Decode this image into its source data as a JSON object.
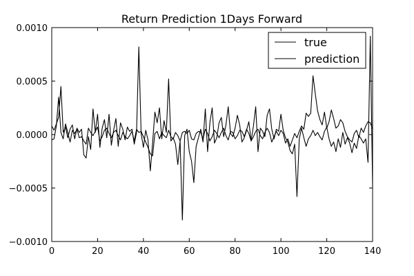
{
  "chart_data": {
    "type": "line",
    "title": "Return Prediction 1Days Forward",
    "xlabel": "",
    "ylabel": "",
    "xlim": [
      0,
      140
    ],
    "ylim": [
      -0.001,
      0.001
    ],
    "x_ticks": [
      0,
      20,
      40,
      60,
      80,
      100,
      120,
      140
    ],
    "x_tick_labels": [
      "0",
      "20",
      "40",
      "60",
      "80",
      "100",
      "120",
      "140"
    ],
    "y_ticks": [
      -0.001,
      -0.0005,
      0.0,
      0.0005,
      0.001
    ],
    "y_tick_labels": [
      "−0.0010",
      "−0.0005",
      "0.0000",
      "0.0005",
      "0.0010"
    ],
    "grid": false,
    "legend_position": "top-right",
    "colors": {
      "line": "#000000",
      "axes": "#000000",
      "background": "#ffffff"
    },
    "series": [
      {
        "name": "true",
        "values": [
          8e-05,
          4e-05,
          0.0001,
          0.00016,
          0.00045,
          2e-05,
          7e-05,
          -3e-05,
          5e-05,
          9e-05,
          -4e-05,
          6e-05,
          2e-05,
          5e-05,
          -0.00019,
          -0.00022,
          -2e-05,
          -0.00014,
          0.00024,
          2e-05,
          0.00019,
          -0.00012,
          6e-05,
          0.00014,
          -3e-05,
          0.00019,
          -0.0001,
          4e-05,
          0.00015,
          -0.00011,
          0.00011,
          5e-05,
          -5e-05,
          7e-05,
          3e-05,
          5e-05,
          -9e-05,
          2e-05,
          0.00082,
          1e-05,
          -0.00012,
          4e-05,
          -5e-05,
          -0.00034,
          -8e-05,
          0.00021,
          0.00011,
          0.00025,
          -4e-05,
          0.00013,
          2e-05,
          0.00052,
          -6e-05,
          -3e-05,
          -9e-05,
          -0.00028,
          -6e-05,
          -0.0008,
          -1e-05,
          5e-05,
          -0.00016,
          -0.00025,
          -0.00045,
          -0.00011,
          -3e-05,
          5e-05,
          -7e-05,
          0.00024,
          -0.00016,
          0.00011,
          0.00025,
          -8e-05,
          -3e-05,
          0.00011,
          0.00016,
          -2e-05,
          9e-05,
          0.00026,
          1e-05,
          -2e-05,
          6e-05,
          0.00018,
          9e-05,
          -7e-05,
          -3e-05,
          4e-05,
          0.00012,
          -6e-05,
          8e-05,
          0.00026,
          -0.00016,
          6e-05,
          3e-05,
          -2e-05,
          0.00018,
          0.00024,
          5e-05,
          -4e-05,
          5e-05,
          3e-05,
          0.00019,
          4e-05,
          -3e-05,
          -7e-05,
          -0.00015,
          -0.00018,
          -9e-05,
          -0.00058,
          -4e-05,
          6e-05,
          -3e-05,
          -0.00011,
          -4e-05,
          -1e-05,
          4e-05,
          -1e-05,
          2e-05,
          -2e-05,
          -5e-05,
          3e-05,
          7e-05,
          -4e-05,
          -0.00011,
          -7e-05,
          -0.00016,
          -4e-05,
          -0.00012,
          2e-05,
          -9e-05,
          -3e-05,
          -8e-05,
          -0.00017,
          -8e-05,
          -0.00013,
          -1e-05,
          -4e-05,
          -8e-05,
          -4e-05,
          -0.00026,
          0.00092,
          -0.00049
        ]
      },
      {
        "name": "prediction",
        "values": [
          -5e-05,
          -4e-05,
          8e-05,
          0.00035,
          2e-05,
          -4e-05,
          0.0001,
          2e-05,
          -7e-05,
          4e-05,
          1e-05,
          5e-05,
          -3e-05,
          -2e-05,
          -6e-05,
          -9e-05,
          6e-05,
          2e-05,
          -1e-05,
          3e-05,
          7e-05,
          -6e-05,
          -2e-05,
          4e-05,
          6e-05,
          1e-05,
          -3e-05,
          2e-05,
          4e-05,
          -1e-05,
          -5e-05,
          2e-05,
          -2e-05,
          -4e-05,
          -1e-05,
          3e-05,
          -6e-05,
          5e-05,
          2e-05,
          3e-05,
          -2e-05,
          -7e-05,
          -0.00012,
          -0.00018,
          -0.0002,
          1e-05,
          3e-05,
          -4e-05,
          2e-05,
          -1e-05,
          -3e-05,
          4e-05,
          -2e-05,
          -4e-05,
          2e-05,
          -1e-05,
          -6e-05,
          2e-05,
          3e-05,
          1e-05,
          4e-05,
          -4e-05,
          -5e-05,
          1e-05,
          3e-05,
          2e-05,
          -4e-05,
          5e-05,
          1e-05,
          -6e-05,
          -2e-05,
          4e-05,
          1e-05,
          -3e-05,
          2e-05,
          6e-05,
          -1e-05,
          -5e-05,
          3e-05,
          2e-05,
          -4e-05,
          -1e-05,
          4e-05,
          3e-05,
          -2e-05,
          5e-05,
          1e-05,
          -6e-05,
          -2e-05,
          3e-05,
          5e-05,
          -1e-05,
          -4e-05,
          2e-05,
          6e-05,
          2e-05,
          -7e-05,
          -2e-05,
          3e-05,
          -1e-05,
          4e-05,
          1e-05,
          -8e-05,
          -4e-05,
          -0.00011,
          -5e-05,
          1e-05,
          -3e-05,
          3e-05,
          8e-05,
          5e-05,
          0.0002,
          0.00017,
          0.0002,
          0.00055,
          0.00038,
          0.00022,
          0.00014,
          9e-05,
          0.00021,
          6e-05,
          0.00012,
          0.00023,
          0.00015,
          6e-05,
          8e-05,
          0.00014,
          0.00011,
          3e-05,
          -2e-05,
          -5e-05,
          -7e-05,
          1e-05,
          4e-05,
          -3e-05,
          6e-05,
          2e-05,
          8e-05,
          0.00012,
          0.00011,
          5e-05
        ]
      }
    ]
  }
}
